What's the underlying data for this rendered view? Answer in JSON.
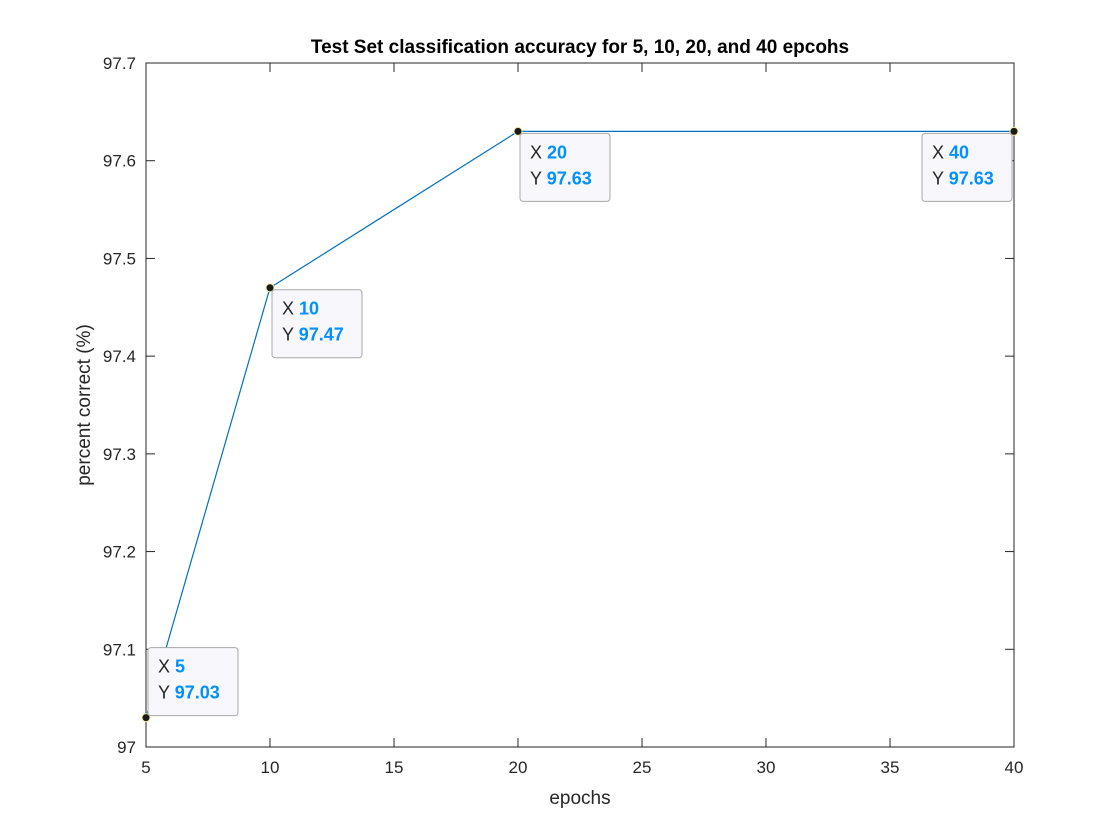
{
  "chart_data": {
    "type": "line",
    "title": "Test Set classification accuracy for 5, 10, 20, and 40 epcohs",
    "xlabel": "epochs",
    "ylabel": "percent correct (%)",
    "xlim": [
      5,
      40
    ],
    "ylim": [
      97,
      97.7
    ],
    "x_ticks": [
      5,
      10,
      15,
      20,
      25,
      30,
      35,
      40
    ],
    "y_ticks": [
      97,
      97.1,
      97.2,
      97.3,
      97.4,
      97.5,
      97.6,
      97.7
    ],
    "x_tick_labels": [
      "5",
      "10",
      "15",
      "20",
      "25",
      "30",
      "35",
      "40"
    ],
    "y_tick_labels": [
      "97",
      "97.1",
      "97.2",
      "97.3",
      "97.4",
      "97.5",
      "97.6",
      "97.7"
    ],
    "grid": false,
    "series": [
      {
        "x": [
          5,
          10,
          20,
          40
        ],
        "y": [
          97.03,
          97.47,
          97.63,
          97.63
        ]
      }
    ],
    "datatips": [
      {
        "x_key": "X",
        "x_text": "5",
        "y_key": "Y",
        "y_text": "97.03"
      },
      {
        "x_key": "X",
        "x_text": "10",
        "y_key": "Y",
        "y_text": "97.47"
      },
      {
        "x_key": "X",
        "x_text": "20",
        "y_key": "Y",
        "y_text": "97.63"
      },
      {
        "x_key": "X",
        "x_text": "40",
        "y_key": "Y",
        "y_text": "97.63"
      }
    ],
    "colors": {
      "line": "#0072BD",
      "marker": "#1a1a1a",
      "datatip_value": "#0090FF",
      "axes": "#262626"
    }
  }
}
